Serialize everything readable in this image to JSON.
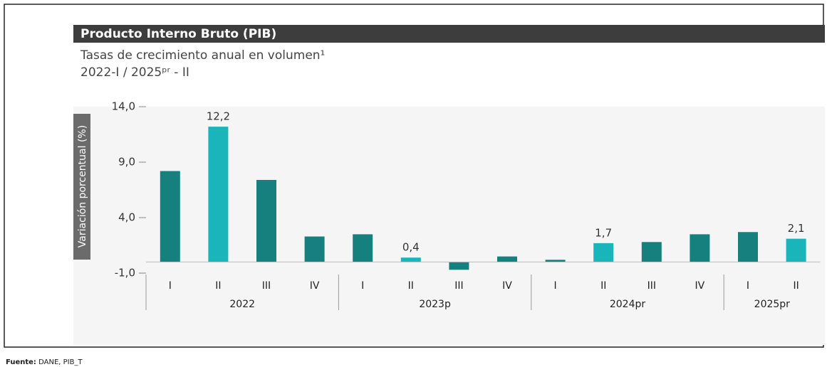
{
  "chart_data": {
    "type": "bar",
    "title": "Producto Interno Bruto (PIB)",
    "subtitle": [
      "Tasas de crecimiento anual en volumen¹",
      "2022-I / 2025ᵖʳ - II"
    ],
    "y_label": "Variación porcentual (%)",
    "ylim": [
      -1,
      14
    ],
    "yticks": [
      {
        "value": -1,
        "label": "-1,0"
      },
      {
        "value": 4,
        "label": "4,0"
      },
      {
        "value": 9,
        "label": "9,0"
      },
      {
        "value": 14,
        "label": "14,0"
      }
    ],
    "groups": [
      {
        "name": "2022",
        "categories": [
          "I",
          "II",
          "III",
          "IV"
        ],
        "values": [
          8.2,
          12.2,
          7.4,
          2.3
        ],
        "value_labels": [
          null,
          "12,2",
          null,
          null
        ],
        "colors": [
          "#16807f",
          "#19b5bb",
          "#16807f",
          "#16807f"
        ]
      },
      {
        "name": "2023p",
        "categories": [
          "I",
          "II",
          "III",
          "IV"
        ],
        "values": [
          2.5,
          0.4,
          -0.7,
          0.5
        ],
        "value_labels": [
          null,
          "0,4",
          null,
          null
        ],
        "colors": [
          "#16807f",
          "#19b5bb",
          "#16807f",
          "#16807f"
        ]
      },
      {
        "name": "2024pr",
        "categories": [
          "I",
          "II",
          "III",
          "IV"
        ],
        "values": [
          0.2,
          1.7,
          1.8,
          2.5
        ],
        "value_labels": [
          null,
          "1,7",
          null,
          null
        ],
        "colors": [
          "#16807f",
          "#19b5bb",
          "#16807f",
          "#16807f"
        ]
      },
      {
        "name": "2025pr",
        "categories": [
          "I",
          "II"
        ],
        "values": [
          2.7,
          2.1
        ],
        "value_labels": [
          null,
          "2,1"
        ],
        "colors": [
          "#16807f",
          "#19b5bb"
        ]
      }
    ],
    "source_label": "Fuente:",
    "source": "DANE, PIB_T"
  }
}
